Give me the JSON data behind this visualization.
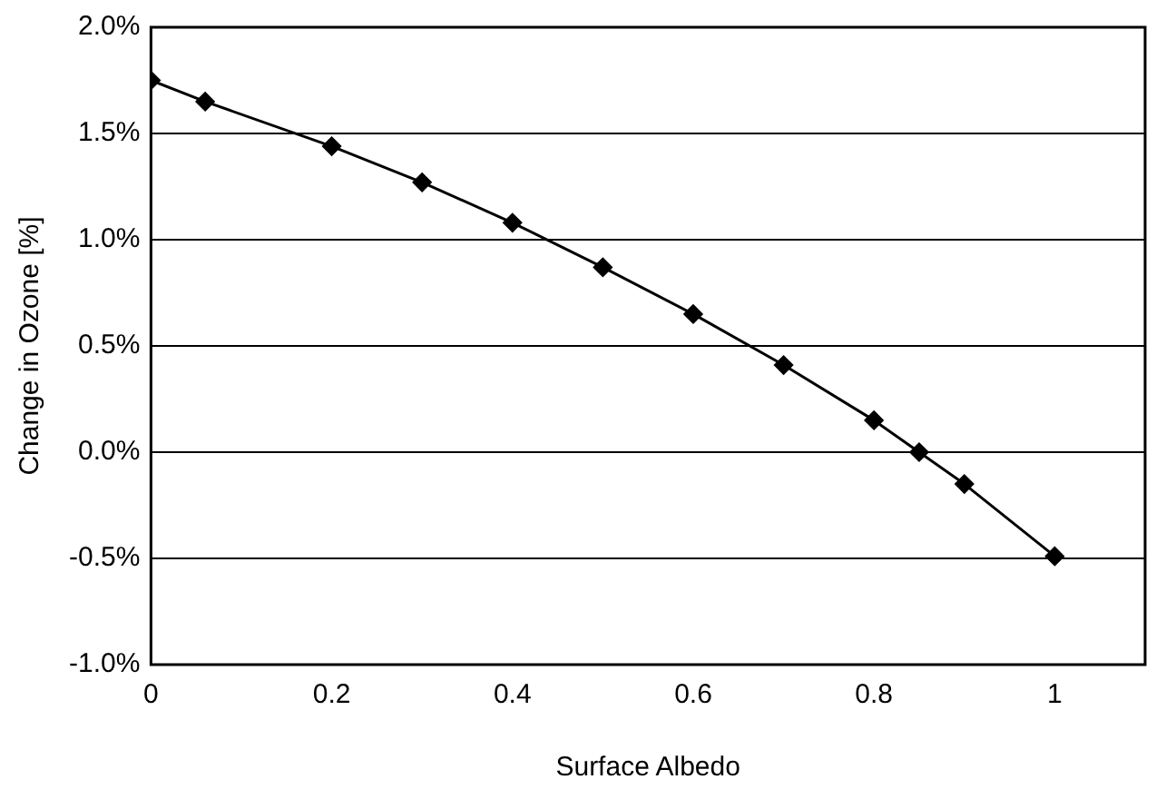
{
  "chart_data": {
    "type": "line",
    "xlabel": "Surface Albedo",
    "ylabel": "Change in Ozone [%]",
    "x": [
      0,
      0.06,
      0.2,
      0.3,
      0.4,
      0.5,
      0.6,
      0.7,
      0.8,
      0.85,
      0.9,
      1
    ],
    "series": [
      {
        "color": "#000000",
        "values": [
          1.75,
          1.65,
          1.44,
          1.27,
          1.08,
          0.87,
          0.65,
          0.41,
          0.15,
          0.0,
          -0.15,
          -0.49
        ]
      }
    ],
    "xlim": [
      0,
      1.1
    ],
    "xticks": [
      0,
      0.2,
      0.4,
      0.6,
      0.8,
      1
    ],
    "ylim": [
      -1,
      2
    ],
    "yticks": [
      {
        "value": -1,
        "label": "-1.0%"
      },
      {
        "value": -0.5,
        "label": "-0.5%"
      },
      {
        "value": 0,
        "label": "0.0%"
      },
      {
        "value": 0.5,
        "label": "0.5%"
      },
      {
        "value": 1,
        "label": "1.0%"
      },
      {
        "value": 1.5,
        "label": "1.5%"
      },
      {
        "value": 2,
        "label": "2.0%"
      }
    ],
    "grid": "y",
    "legend": false,
    "marker": "diamond",
    "line_style": "solid"
  }
}
